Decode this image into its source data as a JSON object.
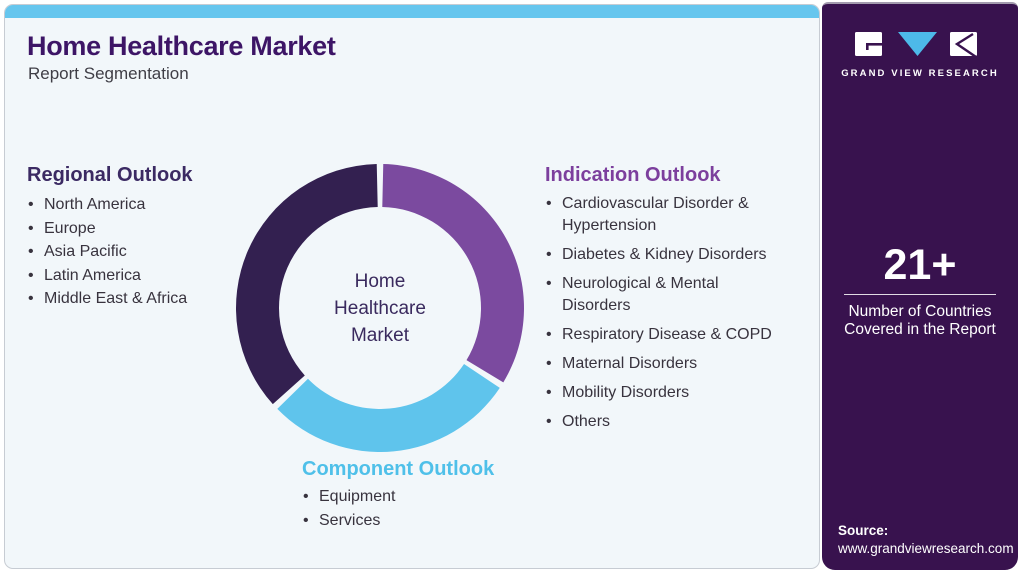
{
  "header": {
    "title": "Home Healthcare Market",
    "subtitle": "Report Segmentation"
  },
  "regional": {
    "heading": "Regional Outlook",
    "items": [
      "North America",
      "Europe",
      "Asia Pacific",
      "Latin America",
      "Middle East & Africa"
    ]
  },
  "indication": {
    "heading": "Indication Outlook",
    "items": [
      "Cardiovascular Disorder &\nHypertension",
      "Diabetes & Kidney Disorders",
      "Neurological & Mental\nDisorders",
      "Respiratory Disease & COPD",
      "Maternal Disorders",
      "Mobility Disorders",
      "Others"
    ]
  },
  "component": {
    "heading": "Component Outlook",
    "items": [
      "Equipment",
      "Services"
    ]
  },
  "sidebar": {
    "logo_text": "GRAND VIEW RESEARCH",
    "countries_value": "21+",
    "countries_label": "Number of Countries\nCovered in the Report",
    "source_label": "Source:",
    "source_url": "www.grandviewresearch.com"
  },
  "colors": {
    "accent_bar_blue": "#66c6ee",
    "sidebar_purple": "#38124e",
    "title_purple": "#3d1566",
    "indication_purple": "#7c3f9d",
    "component_blue": "#4fc0e9",
    "logo_triangle_blue": "#4db9e9"
  },
  "chart_data": {
    "type": "donut",
    "center_label": "Home\nHealthcare\nMarket",
    "title": "",
    "legend_position": "around",
    "segments": [
      {
        "label": "Indication Outlook",
        "color": "#7b4a9f",
        "percent": 34
      },
      {
        "label": "Component Outlook",
        "color": "#5fc4ec",
        "percent": 29
      },
      {
        "label": "Regional Outlook",
        "color": "#332050",
        "percent": 37
      }
    ],
    "start_angle_deg": 0,
    "gap_deg": 1.3,
    "outer_radius_px": 144,
    "inner_radius_px": 101
  }
}
